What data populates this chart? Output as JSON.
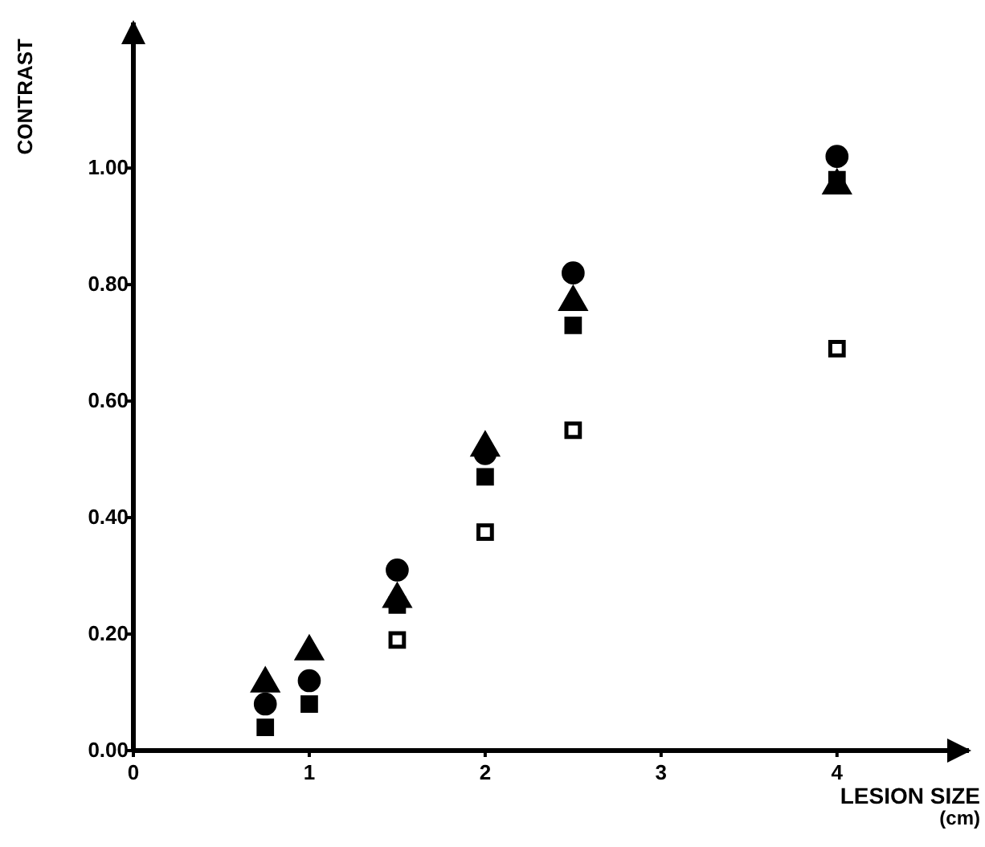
{
  "chart_data": {
    "type": "scatter",
    "xlabel": "LESION SIZE (cm)",
    "ylabel": "CONTRAST",
    "xlim": [
      0,
      4.75
    ],
    "ylim": [
      0,
      1.25
    ],
    "xticks": [
      0,
      1,
      2,
      3,
      4
    ],
    "yticks": [
      {
        "value": 0,
        "label": "0.00"
      },
      {
        "value": 0.2,
        "label": "0.20"
      },
      {
        "value": 0.4,
        "label": "0.40"
      },
      {
        "value": 0.6,
        "label": "0.60"
      },
      {
        "value": 0.8,
        "label": "0.80"
      },
      {
        "value": 1,
        "label": "1.00"
      }
    ],
    "x": [
      0.75,
      1,
      1.5,
      2,
      2.5,
      4
    ],
    "series": [
      {
        "color": "#000000",
        "marker": "circle",
        "values": [
          0.08,
          0.12,
          0.31,
          0.51,
          0.82,
          1.02
        ]
      },
      {
        "color": "#000000",
        "marker": "triangle",
        "values": [
          0.115,
          0.17,
          0.26,
          0.52,
          0.77,
          0.97
        ]
      },
      {
        "color": "#000000",
        "marker": "square",
        "values": [
          0.04,
          0.08,
          0.25,
          0.47,
          0.73,
          0.98
        ]
      },
      {
        "color": "#ffffff",
        "marker": "square",
        "values": [
          null,
          null,
          0.19,
          0.375,
          0.55,
          0.69
        ]
      }
    ]
  }
}
